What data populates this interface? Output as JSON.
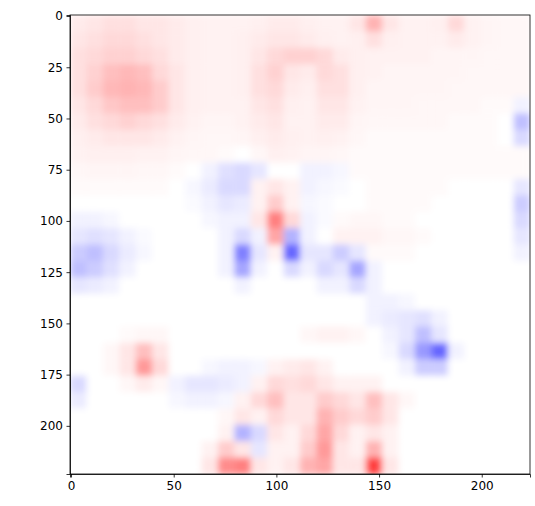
{
  "chart_data": {
    "type": "heatmap",
    "xlim": [
      -0.5,
      223.5
    ],
    "ylim": [
      223.5,
      -0.5
    ],
    "xticks": [
      0,
      50,
      100,
      150,
      200
    ],
    "yticks": [
      0,
      25,
      50,
      75,
      100,
      125,
      150,
      175,
      200
    ],
    "clim": [
      -1,
      1
    ],
    "x_edges": [
      -0.5,
      7.5,
      15.5,
      23.5,
      31.5,
      39.5,
      47.5,
      55.5,
      63.5,
      71.5,
      79.5,
      87.5,
      95.5,
      103.5,
      111.5,
      119.5,
      127.5,
      135.5,
      143.5,
      151.5,
      159.5,
      167.5,
      175.5,
      183.5,
      191.5,
      199.5,
      207.5,
      215.5,
      223.5
    ],
    "y_edges": [
      -0.5,
      7.5,
      15.5,
      23.5,
      31.5,
      39.5,
      47.5,
      55.5,
      63.5,
      71.5,
      79.5,
      87.5,
      95.5,
      103.5,
      111.5,
      119.5,
      127.5,
      135.5,
      143.5,
      151.5,
      159.5,
      167.5,
      175.5,
      183.5,
      191.5,
      199.5,
      207.5,
      215.5,
      223.5
    ],
    "cells": [
      [
        0.08,
        0.1,
        0.12,
        0.12,
        0.1,
        0.1,
        0.08,
        0.06,
        0.05,
        0.05,
        0.05,
        0.06,
        0.08,
        0.08,
        0.06,
        0.05,
        0.05,
        0.1,
        0.3,
        0.1,
        0.05,
        0.05,
        0.06,
        0.15,
        0.05,
        0.04,
        0.03,
        0.03
      ],
      [
        0.1,
        0.12,
        0.15,
        0.15,
        0.12,
        0.1,
        0.08,
        0.06,
        0.05,
        0.05,
        0.06,
        0.08,
        0.1,
        0.1,
        0.08,
        0.06,
        0.05,
        0.06,
        0.12,
        0.06,
        0.05,
        0.05,
        0.05,
        0.08,
        0.05,
        0.04,
        0.03,
        0.03
      ],
      [
        0.12,
        0.15,
        0.18,
        0.18,
        0.15,
        0.12,
        0.08,
        0.06,
        0.05,
        0.05,
        0.06,
        0.1,
        0.15,
        0.18,
        0.18,
        0.15,
        0.08,
        0.06,
        0.05,
        0.05,
        0.05,
        0.05,
        0.04,
        0.04,
        0.04,
        0.03,
        0.03,
        0.03
      ],
      [
        0.12,
        0.18,
        0.25,
        0.28,
        0.25,
        0.15,
        0.1,
        0.06,
        0.05,
        0.05,
        0.06,
        0.12,
        0.18,
        0.1,
        0.08,
        0.15,
        0.12,
        0.06,
        0.05,
        0.04,
        0.04,
        0.04,
        0.04,
        0.04,
        0.03,
        0.03,
        0.03,
        0.03
      ],
      [
        0.12,
        0.2,
        0.28,
        0.3,
        0.28,
        0.2,
        0.1,
        0.06,
        0.05,
        0.05,
        0.06,
        0.12,
        0.15,
        0.08,
        0.06,
        0.12,
        0.12,
        0.06,
        0.04,
        0.04,
        0.04,
        0.04,
        0.04,
        0.03,
        0.03,
        0.03,
        0.03,
        0.03
      ],
      [
        0.1,
        0.15,
        0.22,
        0.25,
        0.25,
        0.2,
        0.1,
        0.06,
        0.05,
        0.05,
        0.05,
        0.1,
        0.12,
        0.06,
        0.05,
        0.1,
        0.1,
        0.05,
        0.04,
        0.04,
        0.04,
        0.03,
        0.03,
        0.03,
        0.03,
        0.02,
        0.02,
        -0.05
      ],
      [
        0.08,
        0.12,
        0.15,
        0.18,
        0.15,
        0.12,
        0.08,
        0.05,
        0.04,
        0.04,
        0.05,
        0.08,
        0.1,
        0.05,
        0.05,
        0.08,
        0.08,
        0.04,
        0.03,
        0.03,
        0.03,
        0.03,
        0.03,
        0.02,
        0.02,
        0.02,
        0.0,
        -0.25
      ],
      [
        0.06,
        0.08,
        0.1,
        0.1,
        0.1,
        0.08,
        0.05,
        0.04,
        0.03,
        0.03,
        0.04,
        0.06,
        0.08,
        0.06,
        0.05,
        0.06,
        0.05,
        0.03,
        0.02,
        0.02,
        0.02,
        0.02,
        0.02,
        0.02,
        0.02,
        0.02,
        0.0,
        -0.15
      ],
      [
        0.05,
        0.06,
        0.06,
        0.06,
        0.05,
        0.05,
        0.04,
        0.03,
        0.03,
        0.02,
        0.0,
        0.03,
        0.06,
        0.05,
        0.04,
        0.04,
        0.03,
        0.02,
        0.02,
        0.02,
        0.02,
        0.02,
        0.02,
        0.02,
        0.02,
        0.02,
        0.02,
        0.02
      ],
      [
        0.03,
        0.04,
        0.04,
        0.04,
        0.03,
        0.03,
        0.02,
        0.0,
        -0.05,
        -0.12,
        -0.15,
        -0.1,
        0.0,
        0.0,
        -0.05,
        -0.05,
        -0.03,
        0.02,
        0.02,
        0.02,
        0.02,
        0.02,
        0.02,
        0.02,
        0.02,
        0.02,
        0.02,
        0.02
      ],
      [
        0.02,
        0.02,
        0.02,
        0.02,
        0.02,
        0.02,
        0.0,
        -0.03,
        -0.08,
        -0.15,
        -0.15,
        0.05,
        0.1,
        0.05,
        -0.05,
        -0.03,
        -0.02,
        0.0,
        0.02,
        0.02,
        0.02,
        0.02,
        0.02,
        0.0,
        0.0,
        0.0,
        0.0,
        -0.1
      ],
      [
        0.0,
        0.0,
        0.0,
        0.0,
        0.0,
        0.0,
        0.0,
        -0.02,
        -0.05,
        -0.1,
        -0.08,
        0.05,
        0.2,
        0.05,
        -0.03,
        -0.02,
        0.0,
        0.0,
        0.02,
        0.02,
        0.02,
        0.02,
        0.0,
        0.0,
        0.0,
        0.0,
        0.0,
        -0.2
      ],
      [
        -0.05,
        -0.05,
        -0.03,
        0.0,
        0.0,
        0.0,
        0.0,
        0.0,
        -0.03,
        -0.05,
        -0.05,
        0.1,
        0.5,
        0.15,
        -0.05,
        -0.02,
        0.02,
        0.03,
        0.03,
        0.02,
        0.02,
        0.0,
        0.0,
        0.0,
        0.0,
        0.0,
        0.0,
        -0.15
      ],
      [
        -0.1,
        -0.12,
        -0.1,
        -0.05,
        -0.02,
        0.0,
        0.0,
        0.0,
        0.0,
        -0.05,
        -0.15,
        -0.05,
        0.35,
        -0.3,
        -0.05,
        0.0,
        0.05,
        0.05,
        0.05,
        0.03,
        0.03,
        0.02,
        0.0,
        0.0,
        0.0,
        0.0,
        0.0,
        -0.1
      ],
      [
        -0.2,
        -0.25,
        -0.15,
        -0.08,
        -0.03,
        0.0,
        0.0,
        0.0,
        0.0,
        -0.05,
        -0.5,
        -0.1,
        0.05,
        -0.6,
        -0.1,
        -0.1,
        -0.2,
        -0.1,
        0.02,
        0.02,
        0.02,
        0.0,
        0.0,
        0.0,
        0.0,
        0.0,
        0.0,
        -0.05
      ],
      [
        -0.25,
        -0.2,
        -0.12,
        -0.05,
        0.0,
        0.0,
        0.0,
        0.0,
        0.0,
        -0.05,
        -0.35,
        -0.05,
        0.0,
        -0.15,
        -0.05,
        -0.15,
        -0.1,
        -0.35,
        -0.05,
        0.0,
        0.0,
        0.0,
        0.0,
        0.0,
        0.0,
        0.0,
        0.0,
        0.0
      ],
      [
        -0.1,
        -0.08,
        -0.05,
        0.0,
        0.0,
        0.0,
        0.0,
        0.0,
        0.0,
        0.0,
        -0.05,
        0.0,
        0.0,
        0.0,
        0.0,
        -0.05,
        -0.05,
        -0.15,
        -0.05,
        0.0,
        0.0,
        0.0,
        0.0,
        0.0,
        0.0,
        0.0,
        0.0,
        0.0
      ],
      [
        0.0,
        0.0,
        0.0,
        0.0,
        0.0,
        0.0,
        0.0,
        0.0,
        0.0,
        0.0,
        0.0,
        0.0,
        0.0,
        0.0,
        0.0,
        0.0,
        0.0,
        0.0,
        -0.05,
        -0.05,
        -0.03,
        0.0,
        0.0,
        0.0,
        0.0,
        0.0,
        0.0,
        0.0
      ],
      [
        0.0,
        0.0,
        0.0,
        0.0,
        0.0,
        0.0,
        0.0,
        0.0,
        0.0,
        0.0,
        0.0,
        0.0,
        0.0,
        0.0,
        0.0,
        0.0,
        0.0,
        0.0,
        -0.05,
        -0.08,
        -0.1,
        -0.12,
        -0.05,
        0.0,
        0.0,
        0.0,
        0.0,
        0.0
      ],
      [
        0.0,
        0.0,
        0.0,
        0.02,
        0.03,
        0.03,
        0.0,
        0.0,
        0.0,
        0.0,
        0.0,
        0.0,
        0.0,
        0.0,
        0.03,
        0.05,
        0.05,
        0.03,
        0.0,
        -0.05,
        -0.1,
        -0.25,
        -0.1,
        0.0,
        0.0,
        0.0,
        0.0,
        0.0
      ],
      [
        0.0,
        0.0,
        0.03,
        0.1,
        0.25,
        0.1,
        0.0,
        0.0,
        0.0,
        0.0,
        0.0,
        0.0,
        0.0,
        0.0,
        0.0,
        0.0,
        0.0,
        0.0,
        0.0,
        -0.03,
        -0.15,
        -0.4,
        -0.6,
        -0.05,
        0.0,
        0.0,
        0.0,
        0.0
      ],
      [
        0.0,
        0.0,
        0.03,
        0.1,
        0.4,
        0.15,
        0.0,
        0.0,
        -0.03,
        -0.05,
        -0.05,
        -0.03,
        0.05,
        0.08,
        0.1,
        0.05,
        0.0,
        0.0,
        0.0,
        0.0,
        -0.05,
        -0.2,
        -0.2,
        0.0,
        0.0,
        0.0,
        0.0,
        0.0
      ],
      [
        -0.15,
        0.0,
        0.0,
        0.03,
        0.08,
        0.03,
        -0.05,
        -0.1,
        -0.1,
        -0.08,
        -0.05,
        0.05,
        0.15,
        0.12,
        0.15,
        0.1,
        0.05,
        0.05,
        0.05,
        0.0,
        0.0,
        0.0,
        0.0,
        0.0,
        0.0,
        0.0,
        0.0,
        0.0
      ],
      [
        -0.08,
        0.0,
        0.0,
        0.0,
        0.0,
        0.0,
        -0.03,
        -0.05,
        -0.05,
        -0.03,
        0.05,
        0.15,
        0.25,
        0.1,
        0.1,
        0.2,
        0.15,
        0.1,
        0.25,
        0.1,
        0.03,
        0.0,
        0.0,
        0.0,
        0.0,
        0.0,
        0.0,
        0.0
      ],
      [
        0.0,
        0.0,
        0.0,
        0.0,
        0.0,
        0.0,
        0.0,
        0.0,
        0.0,
        0.03,
        0.1,
        0.05,
        0.15,
        0.1,
        0.1,
        0.3,
        0.2,
        0.15,
        0.2,
        0.1,
        0.0,
        0.0,
        0.0,
        0.0,
        0.0,
        0.0,
        0.0,
        0.0
      ],
      [
        0.0,
        0.0,
        0.0,
        0.0,
        0.0,
        0.0,
        0.0,
        0.0,
        0.0,
        0.05,
        -0.3,
        -0.15,
        0.1,
        0.05,
        0.15,
        0.35,
        0.15,
        0.05,
        0.1,
        0.05,
        0.0,
        0.0,
        0.0,
        0.0,
        0.0,
        0.0,
        0.0,
        0.0
      ],
      [
        0.0,
        0.0,
        0.0,
        0.0,
        0.0,
        0.0,
        0.0,
        0.0,
        0.05,
        0.2,
        0.1,
        -0.1,
        0.05,
        0.05,
        0.2,
        0.4,
        0.1,
        0.05,
        0.3,
        0.05,
        0.0,
        0.0,
        0.0,
        0.0,
        0.0,
        0.0,
        0.0,
        0.0
      ],
      [
        0.0,
        0.0,
        0.0,
        0.0,
        0.0,
        0.0,
        0.0,
        0.0,
        0.1,
        0.45,
        0.5,
        0.1,
        0.05,
        0.1,
        0.3,
        0.35,
        0.1,
        0.1,
        0.75,
        0.1,
        0.0,
        0.0,
        0.0,
        0.0,
        0.0,
        0.0,
        0.0,
        0.0
      ]
    ]
  }
}
